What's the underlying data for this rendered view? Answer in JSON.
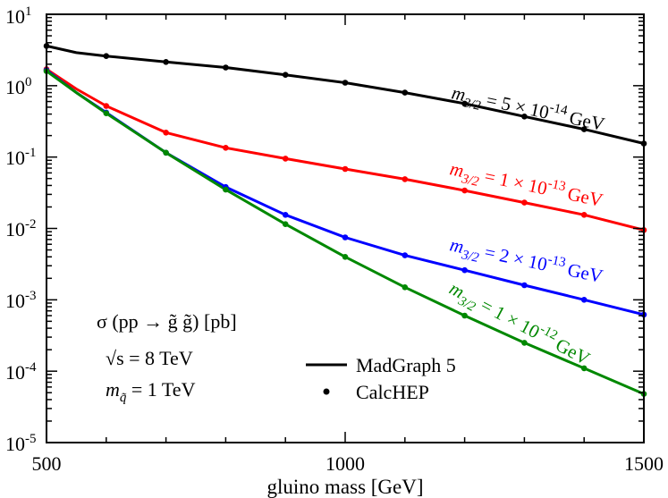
{
  "chart_data": {
    "type": "line",
    "title": "",
    "xlabel": "gluino mass [GeV]",
    "ylabel": "",
    "xlim": [
      500,
      1500
    ],
    "ylim": [
      1e-05,
      10
    ],
    "yscale": "log",
    "grid": false,
    "x_tick_labels": [
      "500",
      "1000",
      "1500"
    ],
    "y_tick_labels": [
      {
        "base": "10",
        "exp": "-5"
      },
      {
        "base": "10",
        "exp": "-4"
      },
      {
        "base": "10",
        "exp": "-3"
      },
      {
        "base": "10",
        "exp": "-2"
      },
      {
        "base": "10",
        "exp": "-1"
      },
      {
        "base": "10",
        "exp": "0"
      },
      {
        "base": "10",
        "exp": "1"
      }
    ],
    "series": [
      {
        "name": "m3/2 = 5 × 10^-14 GeV",
        "label": {
          "m": "m",
          "sub": "3/2",
          "mid": " = 5 × 10",
          "exp": "-14",
          "unit": "GeV"
        },
        "color": "#000000",
        "line_x": [
          500,
          550,
          600,
          700,
          800,
          900,
          1000,
          1100,
          1200,
          1300,
          1400,
          1500
        ],
        "line_y": [
          3.6,
          2.9,
          2.6,
          2.15,
          1.8,
          1.42,
          1.1,
          0.8,
          0.56,
          0.37,
          0.245,
          0.155
        ],
        "points_x": [
          500,
          600,
          700,
          800,
          900,
          1000,
          1100,
          1200,
          1300,
          1400,
          1500
        ],
        "points_y": [
          3.6,
          2.6,
          2.15,
          1.8,
          1.42,
          1.1,
          0.8,
          0.56,
          0.37,
          0.245,
          0.155
        ]
      },
      {
        "name": "m3/2 = 1 × 10^-13 GeV",
        "label": {
          "m": "m",
          "sub": "3/2",
          "mid": " = 1 × 10",
          "exp": "-13",
          "unit": "GeV"
        },
        "color": "#ff0000",
        "line_x": [
          500,
          550,
          600,
          700,
          800,
          900,
          1000,
          1100,
          1200,
          1300,
          1400,
          1500
        ],
        "line_y": [
          1.7,
          0.9,
          0.52,
          0.22,
          0.135,
          0.095,
          0.068,
          0.049,
          0.034,
          0.023,
          0.0155,
          0.0095
        ],
        "points_x": [
          500,
          600,
          700,
          800,
          900,
          1000,
          1100,
          1200,
          1300,
          1400,
          1500
        ],
        "points_y": [
          1.7,
          0.52,
          0.22,
          0.135,
          0.095,
          0.068,
          0.049,
          0.034,
          0.023,
          0.0155,
          0.0095
        ]
      },
      {
        "name": "m3/2 = 2 × 10^-13 GeV",
        "label": {
          "m": "m",
          "sub": "3/2",
          "mid": " = 2 × 10",
          "exp": "-13",
          "unit": "GeV"
        },
        "color": "#0000ff",
        "line_x": [
          500,
          550,
          600,
          700,
          800,
          900,
          1000,
          1100,
          1200,
          1300,
          1400,
          1500
        ],
        "line_y": [
          1.65,
          0.8,
          0.42,
          0.115,
          0.038,
          0.0155,
          0.0075,
          0.0042,
          0.0026,
          0.0016,
          0.001,
          0.00062
        ],
        "points_x": [
          500,
          600,
          700,
          800,
          900,
          1000,
          1100,
          1200,
          1300,
          1400,
          1500
        ],
        "points_y": [
          1.65,
          0.42,
          0.115,
          0.038,
          0.0155,
          0.0075,
          0.0042,
          0.0026,
          0.0016,
          0.001,
          0.00062
        ]
      },
      {
        "name": "m3/2 = 1 × 10^-12 GeV",
        "label": {
          "m": "m",
          "sub": "3/2",
          "mid": " = 1 × 10",
          "exp": "-12",
          "unit": "GeV"
        },
        "color": "#008800",
        "line_x": [
          500,
          550,
          600,
          700,
          800,
          900,
          1000,
          1100,
          1200,
          1300,
          1400,
          1500
        ],
        "line_y": [
          1.6,
          0.8,
          0.41,
          0.115,
          0.035,
          0.0115,
          0.004,
          0.0015,
          0.0006,
          0.00025,
          0.00011,
          4.8e-05
        ],
        "points_x": [
          500,
          600,
          700,
          800,
          900,
          1000,
          1100,
          1200,
          1300,
          1400,
          1500
        ],
        "points_y": [
          1.6,
          0.41,
          0.115,
          0.035,
          0.0115,
          0.004,
          0.0015,
          0.0006,
          0.00025,
          0.00011,
          4.8e-05
        ]
      }
    ],
    "annotations": {
      "process": "σ (pp → g̃ g̃) [pb]",
      "sqrt_s": "√s = 8 TeV",
      "squark": {
        "m": "m",
        "sub": "q̃",
        "rest": " = 1 TeV"
      }
    },
    "legend": {
      "position": "bottom-center",
      "entries": [
        {
          "label": "MadGraph 5",
          "style": "line"
        },
        {
          "label": "CalcHEP",
          "style": "dot"
        }
      ]
    }
  }
}
